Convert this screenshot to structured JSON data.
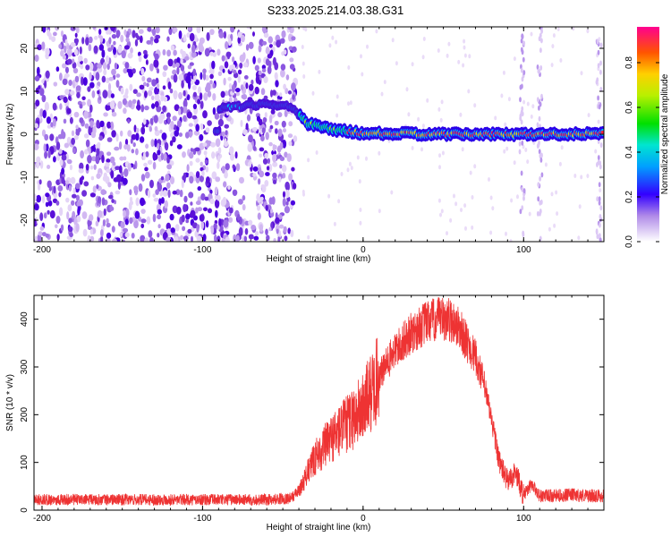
{
  "title": "S233.2025.214.03.38.G31",
  "chart_data": [
    {
      "type": "heatmap",
      "xlabel": "Height of straight line (km)",
      "ylabel": "Frequency (Hz)",
      "xlim": [
        -205,
        150
      ],
      "ylim": [
        -25,
        25
      ],
      "xticks": [
        -200,
        -100,
        0,
        100
      ],
      "yticks": [
        -20,
        -10,
        0,
        10,
        20
      ],
      "noise_region_x": [
        -205,
        -42
      ],
      "signal_track": [
        {
          "x": -90,
          "y": 6
        },
        {
          "x": -60,
          "y": 7
        },
        {
          "x": -45,
          "y": 6.5
        },
        {
          "x": -35,
          "y": 2.5
        },
        {
          "x": -20,
          "y": 1.2
        },
        {
          "x": 0,
          "y": 0.2
        },
        {
          "x": 50,
          "y": 0
        },
        {
          "x": 100,
          "y": 0
        },
        {
          "x": 120,
          "y": 0
        },
        {
          "x": 150,
          "y": 0.3
        }
      ],
      "colorbar": {
        "label": "Normalized spectral amplitude",
        "ticks": [
          0.0,
          0.2,
          0.4,
          0.6,
          0.8
        ],
        "range": [
          0.0,
          0.96
        ]
      },
      "grid": false
    },
    {
      "type": "line",
      "xlabel": "Height of straight line (km)",
      "ylabel": "SNR (10 * v/v)",
      "xlim": [
        -205,
        150
      ],
      "ylim": [
        0,
        450
      ],
      "xticks": [
        -200,
        -100,
        0,
        100
      ],
      "yticks": [
        0,
        100,
        200,
        300,
        400
      ],
      "color": "#ee3333",
      "series": [
        {
          "x": [
            -205,
            -150,
            -100,
            -60,
            -45,
            -40,
            -30,
            -20,
            -10,
            0,
            10,
            20,
            30,
            40,
            50,
            55,
            60,
            65,
            70,
            75,
            80,
            85,
            90,
            95,
            100,
            105,
            110,
            120,
            130,
            140,
            150
          ],
          "values": [
            22,
            22,
            22,
            22,
            25,
            40,
            110,
            150,
            180,
            215,
            280,
            335,
            370,
            395,
            400,
            398,
            380,
            350,
            320,
            270,
            190,
            100,
            60,
            80,
            30,
            55,
            30,
            30,
            32,
            30,
            30
          ]
        }
      ],
      "grid": false
    }
  ]
}
